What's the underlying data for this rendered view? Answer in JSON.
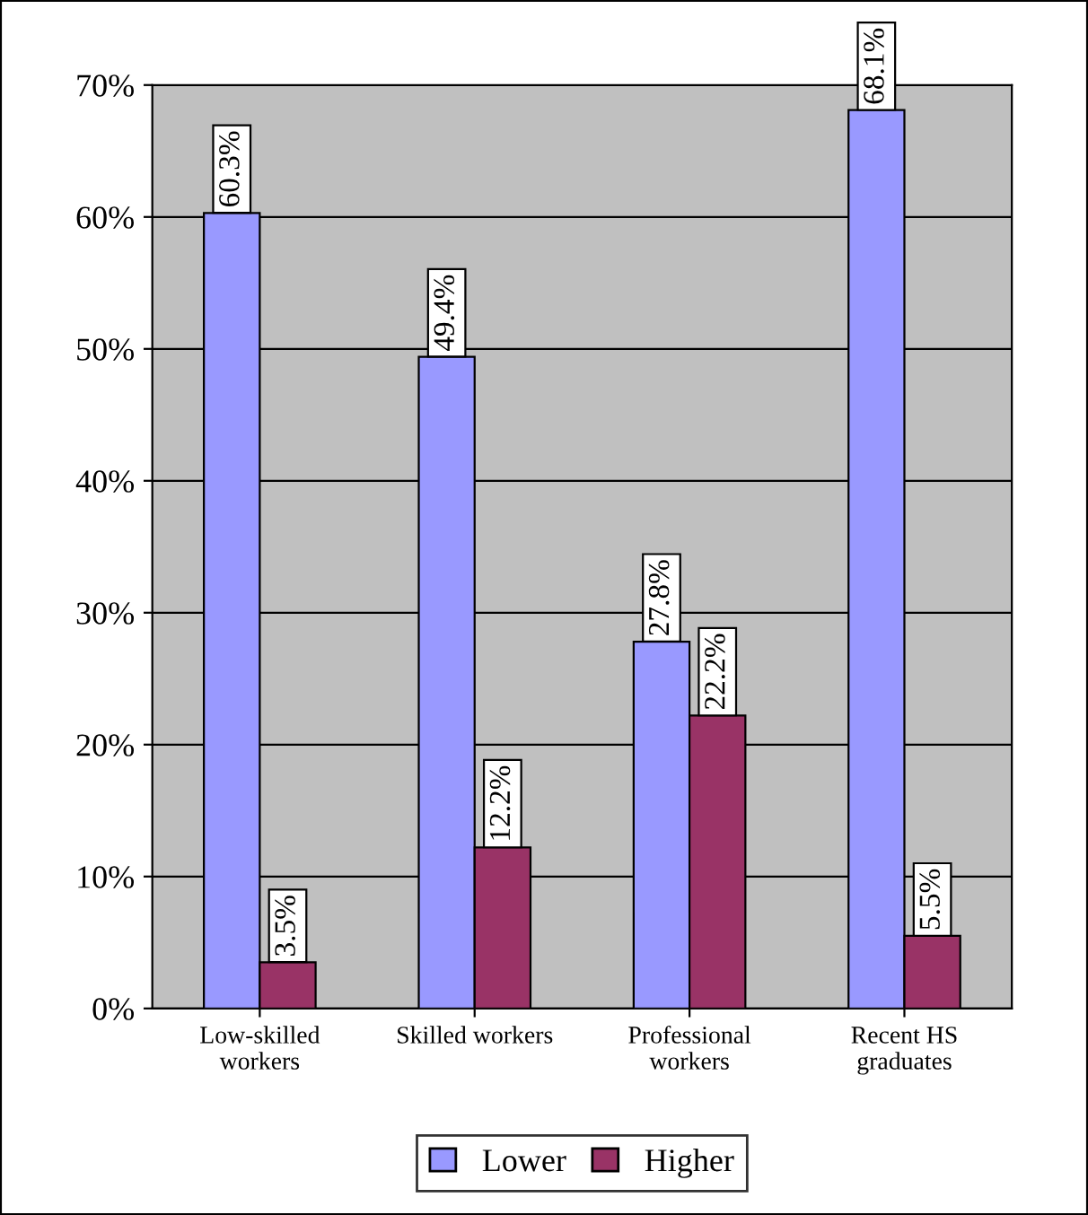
{
  "chart_data": {
    "type": "bar",
    "categories": [
      "Low-skilled\nworkers",
      "Skilled workers",
      "Professional\nworkers",
      "Recent HS\ngraduates"
    ],
    "series": [
      {
        "name": "Lower",
        "color": "#9999ff",
        "values": [
          60.3,
          49.4,
          27.8,
          68.1
        ],
        "value_labels": [
          "60.3%",
          "49.4%",
          "27.8%",
          "68.1%"
        ]
      },
      {
        "name": "Higher",
        "color": "#993366",
        "values": [
          3.5,
          12.2,
          22.2,
          5.5
        ],
        "value_labels": [
          "3.5%",
          "12.2%",
          "22.2%",
          "5.5%"
        ]
      }
    ],
    "ylim": [
      0,
      70
    ],
    "yticks": [
      {
        "value": 0,
        "label": "0%"
      },
      {
        "value": 10,
        "label": "10%"
      },
      {
        "value": 20,
        "label": "20%"
      },
      {
        "value": 30,
        "label": "30%"
      },
      {
        "value": 40,
        "label": "40%"
      },
      {
        "value": 50,
        "label": "50%"
      },
      {
        "value": 60,
        "label": "60%"
      },
      {
        "value": 70,
        "label": "70%"
      }
    ],
    "grid": "y",
    "legend": "bottom"
  }
}
